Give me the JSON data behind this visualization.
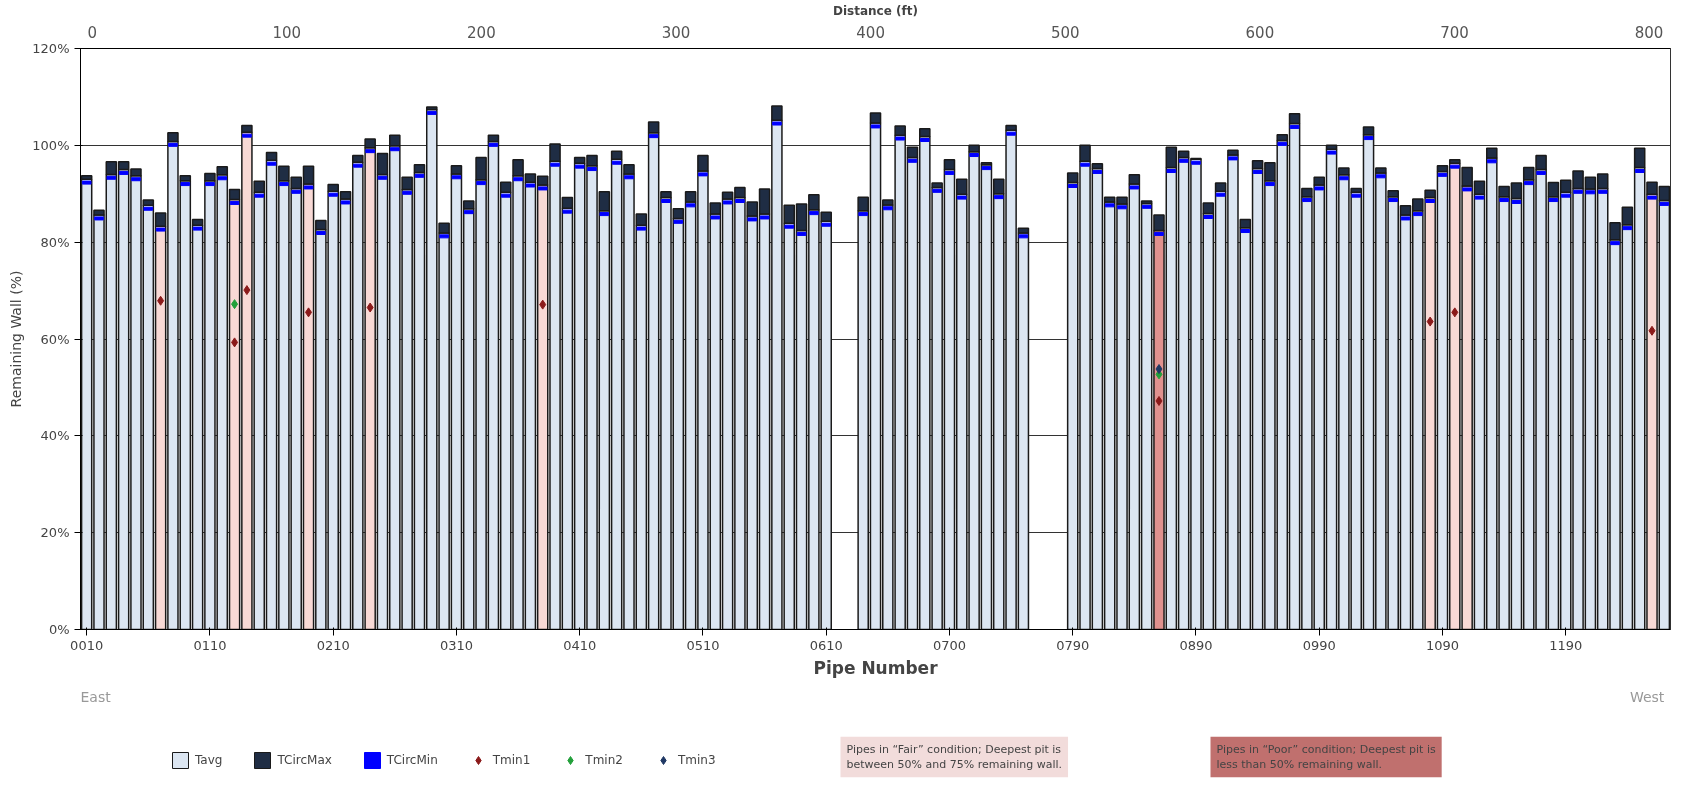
{
  "chart_data": {
    "type": "bar",
    "xlabel": "Pipe Number",
    "ylabel": "Remaining Wall (%)",
    "x2label": "Distance (ft)",
    "categories": [
      "0010",
      null,
      null,
      null,
      null,
      null,
      null,
      null,
      null,
      null,
      "0110",
      null,
      null,
      null,
      null,
      null,
      null,
      null,
      null,
      null,
      "0210",
      null,
      null,
      null,
      null,
      null,
      null,
      null,
      null,
      null,
      "0310",
      null,
      null,
      null,
      null,
      null,
      null,
      null,
      null,
      null,
      "0410",
      null,
      null,
      null,
      null,
      null,
      null,
      null,
      null,
      null,
      "0510",
      null,
      null,
      null,
      null,
      null,
      null,
      null,
      null,
      null,
      "0610",
      null,
      null,
      null,
      null,
      null,
      null,
      null,
      null,
      null,
      "0700",
      null,
      null,
      null,
      null,
      null,
      null,
      null,
      null,
      null,
      "0790",
      null,
      null,
      null,
      null,
      null,
      null,
      null,
      null,
      null,
      "0890",
      null,
      null,
      null,
      null,
      null,
      null,
      null,
      null,
      null,
      "0990",
      null,
      null,
      null,
      null,
      null,
      null,
      null,
      null,
      null,
      "1090",
      null,
      null,
      null,
      null,
      null,
      null,
      null,
      null,
      null,
      "1190",
      null,
      null,
      null,
      null,
      null,
      null,
      null,
      null
    ],
    "series": [
      {
        "name": "Tavg",
        "color": "#dce6f2",
        "values": [
          93.0,
          85.6,
          94.0,
          95.0,
          93.7,
          87.6,
          83.3,
          100.8,
          92.7,
          83.5,
          92.7,
          93.9,
          88.8,
          102.7,
          90.3,
          96.9,
          92.7,
          91.1,
          92.0,
          82.6,
          90.5,
          88.9,
          96.5,
          99.5,
          94.0,
          99.9,
          90.9,
          94.4,
          107.4,
          81.9,
          94.1,
          86.9,
          92.9,
          100.8,
          90.3,
          93.7,
          92.4,
          91.8,
          96.7,
          87.0,
          96.3,
          95.8,
          86.5,
          97.1,
          94.1,
          83.5,
          102.6,
          89.2,
          84.9,
          88.3,
          94.7,
          85.8,
          88.9,
          89.2,
          85.4,
          85.8,
          105.2,
          83.9,
          82.4,
          86.7,
          84.3,
          null,
          null,
          86.5,
          104.6,
          87.7,
          102.1,
          97.5,
          101.8,
          91.3,
          95.0,
          89.9,
          98.7,
          96.0,
          90.0,
          103.1,
          81.9,
          null,
          null,
          null,
          92.3,
          96.7,
          95.2,
          88.3,
          87.9,
          92.0,
          88.0,
          82.4,
          95.4,
          97.5,
          97.1,
          85.9,
          90.5,
          98.0,
          83.0,
          95.2,
          92.7,
          101.0,
          104.5,
          89.4,
          91.8,
          99.2,
          93.9,
          90.3,
          102.2,
          94.3,
          89.4,
          85.6,
          86.5,
          89.2,
          94.6,
          96.3,
          91.6,
          89.9,
          97.4,
          89.4,
          89.0,
          92.9,
          95.0,
          89.4,
          90.3,
          91.1,
          91.0,
          91.1,
          80.5,
          83.6,
          95.4,
          89.9,
          88.6
        ],
        "colors": [
          null,
          null,
          null,
          null,
          null,
          null,
          "#f8d9d5",
          null,
          null,
          null,
          null,
          null,
          "#f8d9d5",
          "#f8d9d5",
          null,
          null,
          null,
          null,
          "#f8d9d5",
          null,
          null,
          null,
          null,
          "#f8d9d5",
          null,
          null,
          null,
          null,
          null,
          null,
          null,
          null,
          null,
          null,
          null,
          null,
          null,
          "#f8d9d5",
          null,
          null,
          null,
          null,
          null,
          null,
          null,
          null,
          null,
          null,
          null,
          null,
          null,
          null,
          null,
          null,
          null,
          null,
          null,
          null,
          null,
          null,
          null,
          null,
          null,
          null,
          null,
          null,
          null,
          null,
          null,
          null,
          null,
          null,
          null,
          null,
          null,
          null,
          null,
          null,
          null,
          null,
          null,
          null,
          null,
          null,
          null,
          null,
          null,
          "#e0918e",
          null,
          null,
          null,
          null,
          null,
          null,
          null,
          null,
          null,
          null,
          null,
          null,
          null,
          null,
          null,
          null,
          null,
          null,
          null,
          null,
          null,
          "#f8d9d5",
          null,
          "#f8d9d5",
          "#f8d9d5",
          null,
          null,
          null,
          null,
          null,
          null,
          null,
          null,
          null,
          null,
          null,
          null,
          null,
          null,
          "#f8d9d5",
          null
        ]
      },
      {
        "name": "TCircMax",
        "color": "#1f2d44",
        "values": [
          0.7,
          1.0,
          2.6,
          1.6,
          1.4,
          1.1,
          2.7,
          1.8,
          1.0,
          1.2,
          1.5,
          1.7,
          2.1,
          1.4,
          2.3,
          1.6,
          3.0,
          2.3,
          3.7,
          1.9,
          1.4,
          1.5,
          1.4,
          1.8,
          4.3,
          2.2,
          2.5,
          1.6,
          0.5,
          2.0,
          1.7,
          1.6,
          4.6,
          1.3,
          2.1,
          3.3,
          1.7,
          1.8,
          3.6,
          2.2,
          1.2,
          2.1,
          3.9,
          1.7,
          1.9,
          2.3,
          2.2,
          1.2,
          2.0,
          2.1,
          3.2,
          2.3,
          1.4,
          2.1,
          2.9,
          5.2,
          2.9,
          3.7,
          5.5,
          3.1,
          1.9,
          null,
          null,
          2.8,
          2.1,
          1.0,
          1.9,
          2.1,
          1.6,
          0.9,
          2.0,
          3.1,
          1.3,
          0.4,
          3.0,
          1.0,
          1.0,
          null,
          null,
          null,
          2.0,
          3.3,
          1.0,
          1.0,
          1.4,
          1.9,
          0.5,
          3.2,
          4.2,
          1.3,
          0.2,
          2.2,
          1.7,
          1.0,
          1.7,
          1.6,
          3.7,
          1.2,
          2.0,
          1.7,
          1.6,
          0.8,
          1.4,
          0.8,
          1.6,
          1.0,
          1.2,
          1.9,
          2.4,
          1.5,
          1.2,
          0.7,
          3.8,
          2.7,
          2.0,
          2.1,
          3.2,
          2.5,
          2.9,
          2.9,
          2.5,
          3.6,
          2.4,
          3.0,
          3.5,
          3.6,
          4.0,
          2.5,
          2.9
        ]
      },
      {
        "name": "TCircMin",
        "type": "scatter",
        "color": "#0000ff",
        "values": [
          92.3,
          84.9,
          93.3,
          94.3,
          93.0,
          86.9,
          82.6,
          100.1,
          92.0,
          82.8,
          92.0,
          93.2,
          88.1,
          102.0,
          89.6,
          96.2,
          92.0,
          90.4,
          91.3,
          81.9,
          89.8,
          88.2,
          95.8,
          98.8,
          93.3,
          99.2,
          90.2,
          93.7,
          106.7,
          81.2,
          93.4,
          86.2,
          92.2,
          100.1,
          89.6,
          93.0,
          91.7,
          91.1,
          96.0,
          86.3,
          95.6,
          95.1,
          85.8,
          96.4,
          93.4,
          82.8,
          101.9,
          88.5,
          84.2,
          87.6,
          94.0,
          85.1,
          88.2,
          88.5,
          84.7,
          85.1,
          104.5,
          83.2,
          81.7,
          86.0,
          83.6,
          null,
          null,
          85.8,
          103.9,
          87.0,
          101.4,
          96.8,
          101.1,
          90.6,
          94.3,
          89.2,
          98.0,
          95.3,
          89.3,
          102.4,
          81.2,
          null,
          null,
          null,
          91.6,
          96.0,
          94.5,
          87.6,
          87.2,
          91.3,
          87.3,
          81.7,
          94.7,
          96.8,
          96.4,
          85.2,
          89.8,
          97.3,
          82.3,
          94.5,
          92.0,
          100.3,
          103.8,
          88.7,
          91.1,
          98.5,
          93.2,
          89.6,
          101.5,
          93.6,
          88.7,
          84.9,
          85.8,
          88.5,
          93.9,
          95.6,
          90.9,
          89.2,
          96.7,
          88.7,
          88.3,
          92.2,
          94.3,
          88.7,
          89.6,
          90.4,
          90.3,
          90.4,
          79.8,
          82.9,
          94.7,
          89.2,
          87.9
        ]
      },
      {
        "name": "Tmin1",
        "type": "scatter",
        "marker": "diamond",
        "color": "#8b1a1a",
        "values": [
          null,
          null,
          null,
          null,
          null,
          null,
          67.9,
          null,
          null,
          null,
          null,
          null,
          59.3,
          70.1,
          null,
          null,
          null,
          null,
          65.5,
          null,
          null,
          null,
          null,
          66.5,
          null,
          null,
          null,
          null,
          null,
          null,
          null,
          null,
          null,
          null,
          null,
          null,
          null,
          67.1,
          null,
          null,
          null,
          null,
          null,
          null,
          null,
          null,
          null,
          null,
          null,
          null,
          null,
          null,
          null,
          null,
          null,
          null,
          null,
          null,
          null,
          null,
          null,
          null,
          null,
          null,
          null,
          null,
          null,
          null,
          null,
          null,
          null,
          null,
          null,
          null,
          null,
          null,
          null,
          null,
          null,
          null,
          null,
          null,
          null,
          null,
          null,
          null,
          null,
          47.2,
          null,
          null,
          null,
          null,
          null,
          null,
          null,
          null,
          null,
          null,
          null,
          null,
          null,
          null,
          null,
          null,
          null,
          null,
          null,
          null,
          null,
          63.6,
          null,
          65.5,
          null,
          null,
          null,
          null,
          null,
          null,
          null,
          null,
          null,
          null,
          null,
          null,
          null,
          null,
          null,
          61.7,
          null
        ]
      },
      {
        "name": "Tmin2",
        "type": "scatter",
        "marker": "diamond",
        "color": "#22a03a",
        "values": [
          null,
          null,
          null,
          null,
          null,
          null,
          null,
          null,
          null,
          null,
          null,
          null,
          67.2,
          null,
          null,
          null,
          null,
          null,
          null,
          null,
          null,
          null,
          null,
          null,
          null,
          null,
          null,
          null,
          null,
          null,
          null,
          null,
          null,
          null,
          null,
          null,
          null,
          null,
          null,
          null,
          null,
          null,
          null,
          null,
          null,
          null,
          null,
          null,
          null,
          null,
          null,
          null,
          null,
          null,
          null,
          null,
          null,
          null,
          null,
          null,
          null,
          null,
          null,
          null,
          null,
          null,
          null,
          null,
          null,
          null,
          null,
          null,
          null,
          null,
          null,
          null,
          null,
          null,
          null,
          null,
          null,
          null,
          null,
          null,
          null,
          null,
          null,
          52.7,
          null,
          null,
          null,
          null,
          null,
          null,
          null,
          null,
          null,
          null,
          null,
          null,
          null,
          null,
          null,
          null,
          null,
          null,
          null,
          null,
          null,
          null,
          null,
          null,
          null,
          null,
          null,
          null,
          null,
          null,
          null,
          null,
          null,
          null,
          null,
          null,
          null,
          null,
          null,
          null,
          null
        ]
      },
      {
        "name": "Tmin3",
        "type": "scatter",
        "marker": "diamond",
        "color": "#1f3864",
        "values": [
          null,
          null,
          null,
          null,
          null,
          null,
          null,
          null,
          null,
          null,
          null,
          null,
          null,
          null,
          null,
          null,
          null,
          null,
          null,
          null,
          null,
          null,
          null,
          null,
          null,
          null,
          null,
          null,
          null,
          null,
          null,
          null,
          null,
          null,
          null,
          null,
          null,
          null,
          null,
          null,
          null,
          null,
          null,
          null,
          null,
          null,
          null,
          null,
          null,
          null,
          null,
          null,
          null,
          null,
          null,
          null,
          null,
          null,
          null,
          null,
          null,
          null,
          null,
          null,
          null,
          null,
          null,
          null,
          null,
          null,
          null,
          null,
          null,
          null,
          null,
          null,
          null,
          null,
          null,
          null,
          null,
          null,
          null,
          null,
          null,
          null,
          null,
          53.8,
          null,
          null,
          null,
          null,
          null,
          null,
          null,
          null,
          null,
          null,
          null,
          null,
          null,
          null,
          null,
          null,
          null,
          null,
          null,
          null,
          null,
          null,
          null,
          null,
          null,
          null,
          null,
          null,
          null,
          null,
          null,
          null,
          null,
          null,
          null,
          null,
          null,
          null,
          null,
          null,
          null
        ]
      }
    ],
    "ylim": [
      0,
      120
    ],
    "yticks": [
      {
        "value": 0,
        "label": "0%"
      },
      {
        "value": 20,
        "label": "20%"
      },
      {
        "value": 40,
        "label": "40%"
      },
      {
        "value": 60,
        "label": "60%"
      },
      {
        "value": 80,
        "label": "80%"
      },
      {
        "value": 100,
        "label": "100%"
      },
      {
        "value": 120,
        "label": "120%"
      }
    ],
    "x2lim": [
      -6,
      811
    ],
    "x2ticks": [
      0,
      100,
      200,
      300,
      400,
      500,
      600,
      700,
      800
    ],
    "grid": "y",
    "stacked": true,
    "legend": "bottom",
    "annotations": [
      "East",
      "West",
      "Pipes in “Fair” condition; Deepest pit is between 50% and 75% remaining wall.",
      "Pipes in “Poor” condition; Deepest pit is less than 50% remaining wall."
    ]
  }
}
